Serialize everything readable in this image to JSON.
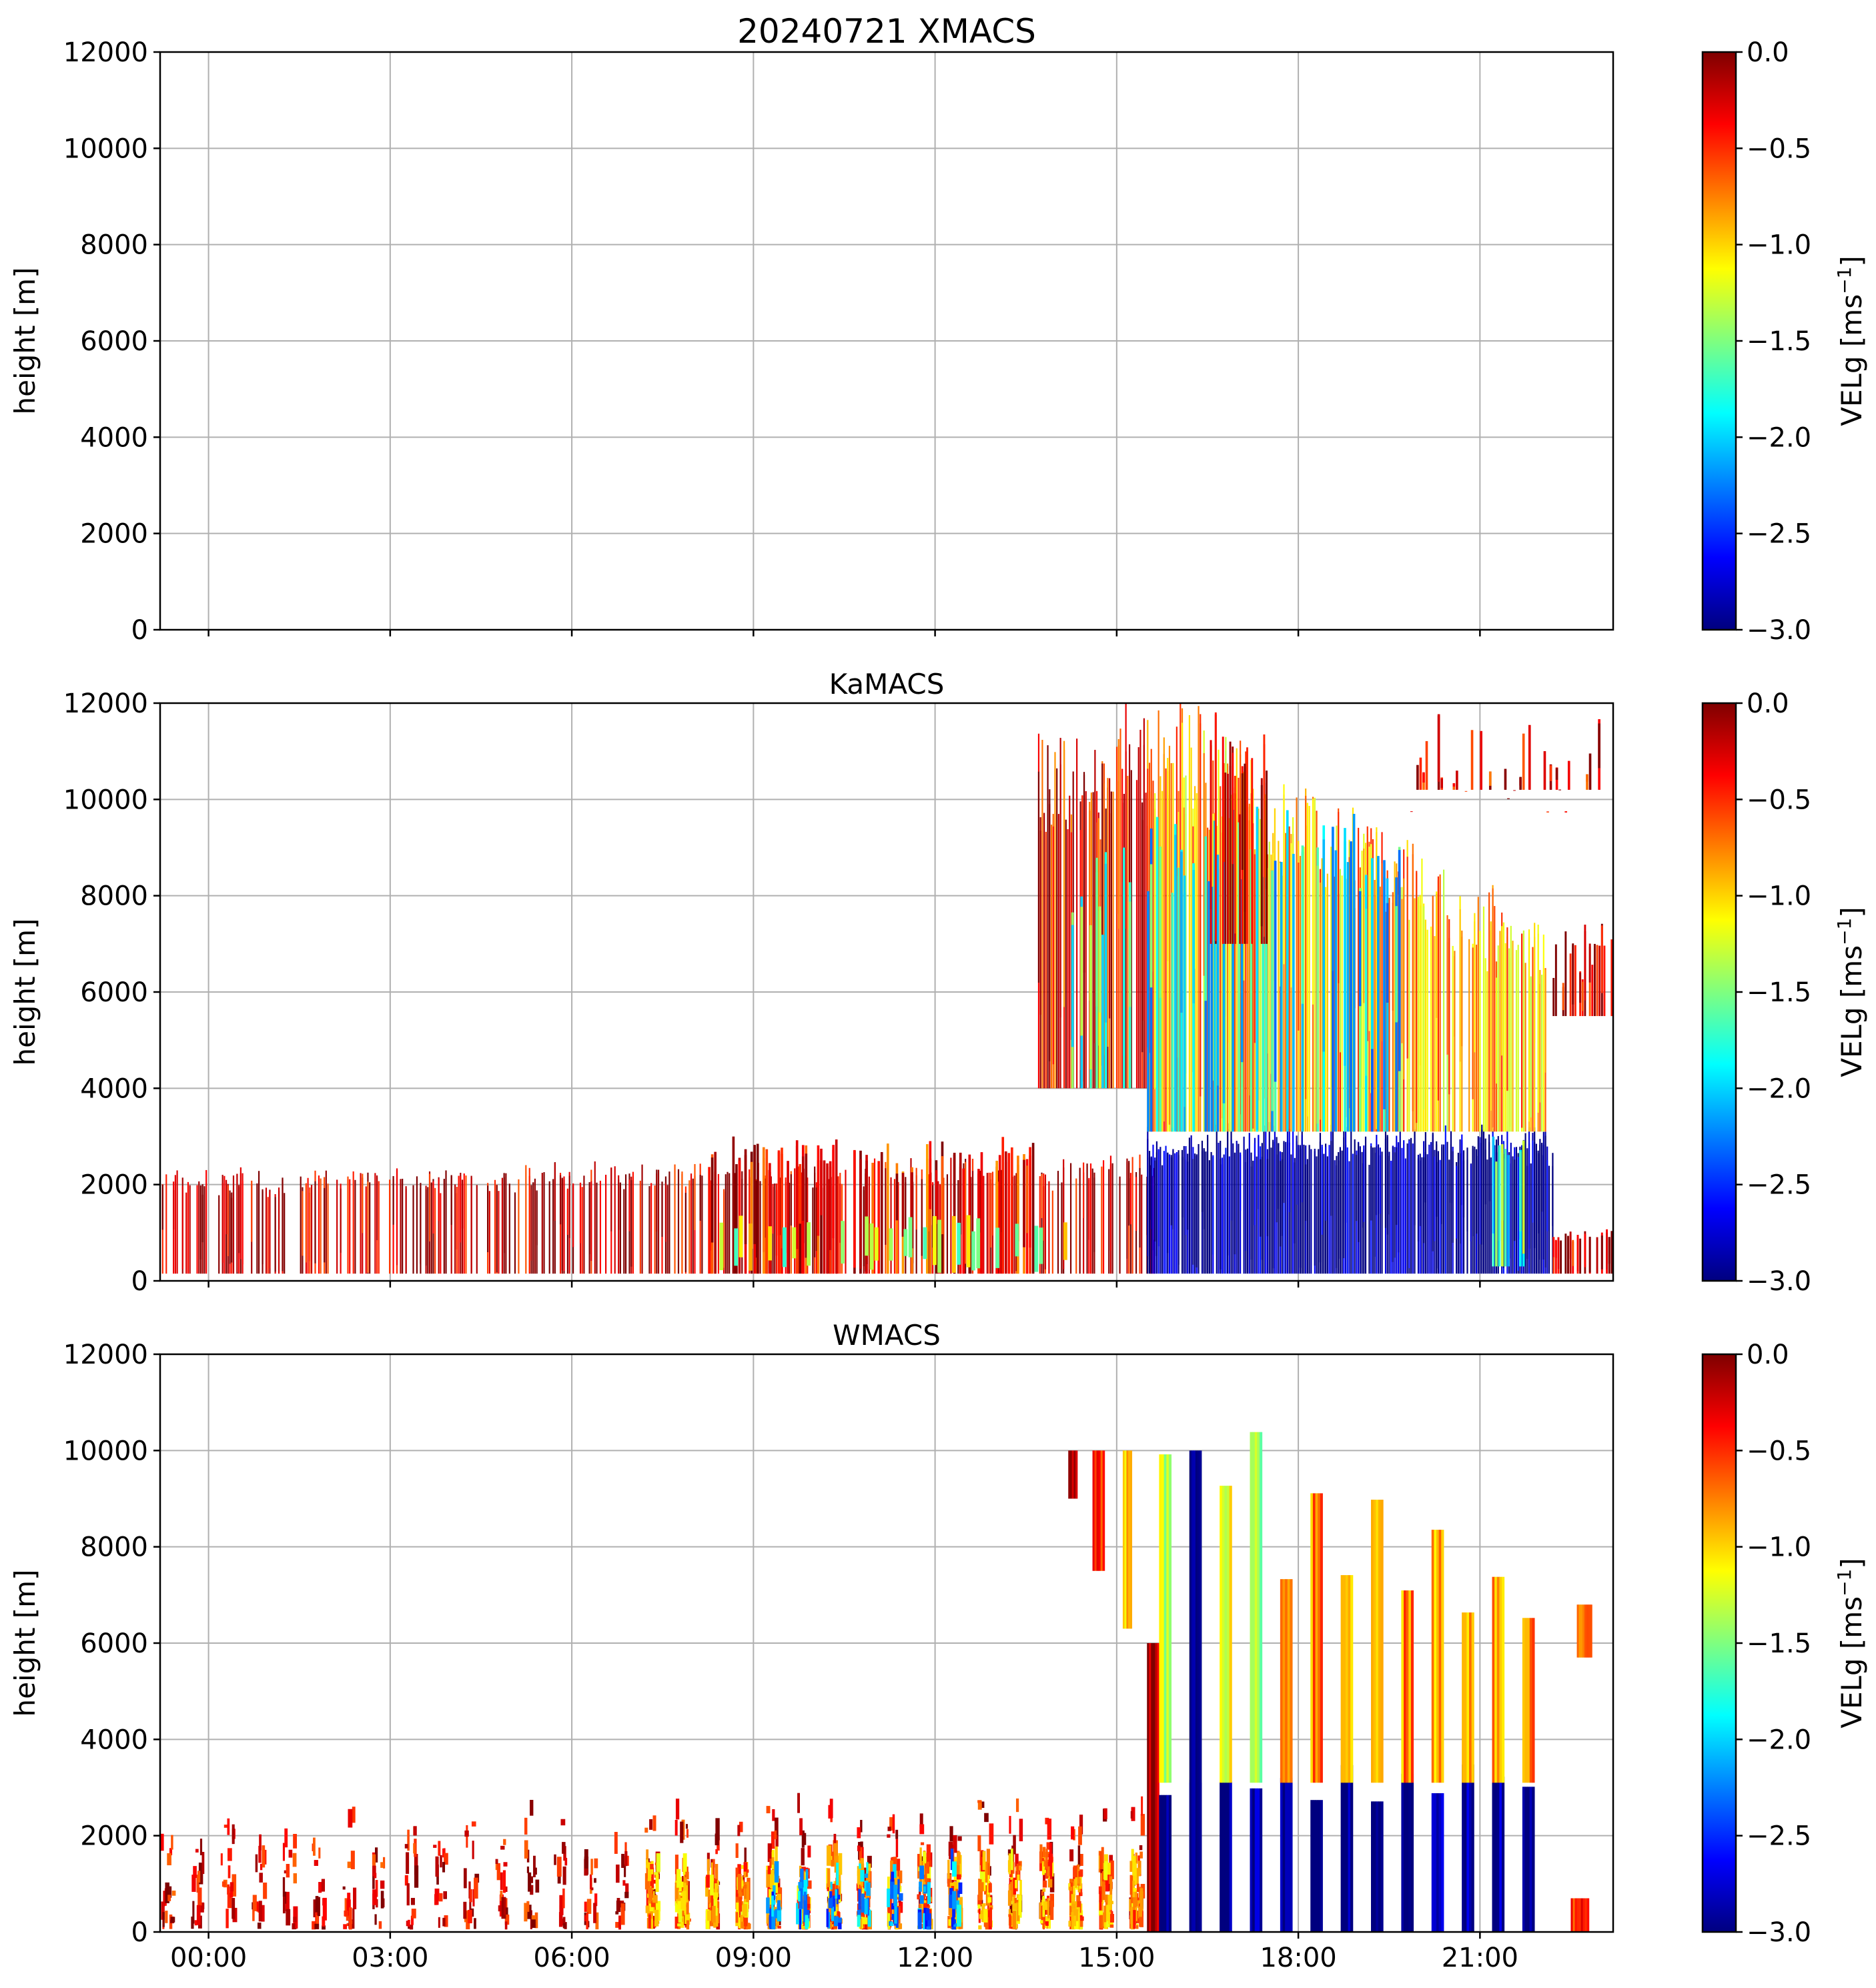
{
  "figure": {
    "colormap": "jet",
    "colormap_stops": [
      "#00007f",
      "#0000ff",
      "#007fff",
      "#00ffff",
      "#7fff7f",
      "#ffff00",
      "#ff7f00",
      "#ff0000",
      "#7f0000"
    ],
    "grid_color": "#b0b0b0",
    "time_tick_labels": [
      "00:00",
      "03:00",
      "06:00",
      "09:00",
      "12:00",
      "15:00",
      "18:00",
      "21:00"
    ],
    "time_tick_hours": [
      0.8,
      3.8,
      6.8,
      9.8,
      12.8,
      15.8,
      18.8,
      21.8
    ],
    "time_range_hours": [
      0.0,
      24.0
    ]
  },
  "chart_data": [
    {
      "type": "heatmap",
      "title": "20240721 XMACS",
      "xlabel": "",
      "ylabel": "height [m]",
      "ylim": [
        0,
        12000
      ],
      "yticks": [
        0,
        2000,
        4000,
        6000,
        8000,
        10000,
        12000
      ],
      "ytick_labels": [
        "0",
        "2000",
        "4000",
        "6000",
        "8000",
        "10000",
        "12000"
      ],
      "colorbar": {
        "label": "VELg [ms",
        "label_sup": "−1",
        "label_end": "]",
        "range": [
          -3.0,
          0.0
        ],
        "ticks": [
          0.0,
          -0.5,
          -1.0,
          -1.5,
          -2.0,
          -2.5,
          -3.0
        ],
        "tick_labels": [
          "0.0",
          "−0.5",
          "−1.0",
          "−1.5",
          "−2.0",
          "−2.5",
          "−3.0"
        ]
      },
      "features": []
    },
    {
      "type": "heatmap",
      "title": "KaMACS",
      "xlabel": "",
      "ylabel": "height [m]",
      "ylim": [
        0,
        12000
      ],
      "yticks": [
        0,
        2000,
        4000,
        6000,
        8000,
        10000,
        12000
      ],
      "ytick_labels": [
        "0",
        "2000",
        "4000",
        "6000",
        "8000",
        "10000",
        "12000"
      ],
      "colorbar": {
        "label": "VELg [ms",
        "label_sup": "−1",
        "label_end": "]",
        "range": [
          -3.0,
          0.0
        ],
        "ticks": [
          0.0,
          -0.5,
          -1.0,
          -1.5,
          -2.0,
          -2.5,
          -3.0
        ],
        "tick_labels": [
          "0.0",
          "−0.5",
          "−1.0",
          "−1.5",
          "−2.0",
          "−2.5",
          "−3.0"
        ]
      },
      "features": [
        {
          "kind": "layer",
          "t0": 0.0,
          "t1": 16.5,
          "h0": 150,
          "h1": 2200,
          "h1_end": 2500,
          "vel": -0.2,
          "density": 0.55,
          "stride": 0.03
        },
        {
          "kind": "layer",
          "t0": 9.0,
          "t1": 14.5,
          "h0": 150,
          "h1": 2800,
          "vel": -0.4,
          "density": 0.45,
          "stride": 0.05
        },
        {
          "kind": "patch",
          "t0": 9.0,
          "t1": 15.0,
          "h0": 150,
          "h1": 1300,
          "vel": -1.3,
          "density": 0.35,
          "stride": 0.08
        },
        {
          "kind": "layer",
          "t0": 14.5,
          "t1": 16.3,
          "h0": 4000,
          "h1": 10800,
          "h1_end": 11500,
          "vel": -0.4,
          "density": 0.85,
          "stride": 0.03
        },
        {
          "kind": "layer",
          "t0": 15.0,
          "t1": 16.3,
          "h0": 4000,
          "h1": 8500,
          "vel": -1.6,
          "density": 0.4,
          "stride": 0.05
        },
        {
          "kind": "layer",
          "t0": 16.3,
          "t1": 23.0,
          "h0": 150,
          "h1": 3100,
          "vel": -3.0,
          "density": 0.92,
          "stride": 0.03
        },
        {
          "kind": "layer",
          "t0": 16.3,
          "t1": 22.9,
          "h0": 3100,
          "h1": 11800,
          "h1_end": 7000,
          "vel": -0.9,
          "density": 0.85,
          "stride": 0.03
        },
        {
          "kind": "layer",
          "t0": 16.3,
          "t1": 20.5,
          "h0": 3100,
          "h1": 9500,
          "vel": -1.9,
          "density": 0.45,
          "stride": 0.05
        },
        {
          "kind": "layer",
          "t0": 17.3,
          "t1": 18.3,
          "h0": 7000,
          "h1": 11500,
          "vel": -0.1,
          "density": 0.6,
          "stride": 0.04
        },
        {
          "kind": "layer",
          "t0": 20.5,
          "t1": 24.0,
          "h0": 10200,
          "h1": 11000,
          "vel": -0.3,
          "density": 0.55,
          "stride": 0.05
        },
        {
          "kind": "layer",
          "t0": 23.0,
          "t1": 24.0,
          "h0": 5500,
          "h1": 7000,
          "vel": -0.2,
          "density": 0.7,
          "stride": 0.04
        },
        {
          "kind": "layer",
          "t0": 23.0,
          "t1": 24.0,
          "h0": 150,
          "h1": 1000,
          "vel": -0.2,
          "density": 0.6,
          "stride": 0.04
        },
        {
          "kind": "layer",
          "t0": 22.0,
          "t1": 22.6,
          "h0": 300,
          "h1": 3100,
          "vel": -1.7,
          "density": 0.5,
          "stride": 0.05
        }
      ]
    },
    {
      "type": "heatmap",
      "title": "WMACS",
      "xlabel": "",
      "ylabel": "height [m]",
      "ylim": [
        0,
        12000
      ],
      "yticks": [
        0,
        2000,
        4000,
        6000,
        8000,
        10000,
        12000
      ],
      "ytick_labels": [
        "0",
        "2000",
        "4000",
        "6000",
        "8000",
        "10000",
        "12000"
      ],
      "colorbar": {
        "label": "VELg [ms",
        "label_sup": "−1",
        "label_end": "]",
        "range": [
          -3.0,
          0.0
        ],
        "ticks": [
          0.0,
          -0.5,
          -1.0,
          -1.5,
          -2.0,
          -2.5,
          -3.0
        ],
        "tick_labels": [
          "0.0",
          "−0.5",
          "−1.0",
          "−1.5",
          "−2.0",
          "−2.5",
          "−3.0"
        ]
      },
      "features": [
        {
          "kind": "periodic",
          "t0": 0.0,
          "t1": 16.2,
          "period": 0.5,
          "width": 0.2,
          "h0": 50,
          "h1": 2000,
          "h1_end": 2600,
          "vel": -0.3,
          "density": 0.3
        },
        {
          "kind": "periodic",
          "t0": 8.0,
          "t1": 16.2,
          "period": 0.5,
          "width": 0.2,
          "h0": 50,
          "h1": 1400,
          "vel": -0.8,
          "density": 0.75
        },
        {
          "kind": "periodic",
          "t0": 10.0,
          "t1": 13.5,
          "period": 0.5,
          "width": 0.2,
          "h0": 50,
          "h1": 1200,
          "vel": -2.2,
          "density": 0.25
        },
        {
          "kind": "column",
          "t0": 15.0,
          "t1": 15.15,
          "h0": 9000,
          "h1": 10000,
          "vel": -0.2
        },
        {
          "kind": "column",
          "t0": 15.4,
          "t1": 15.6,
          "h0": 7500,
          "h1": 10000,
          "vel": -0.5
        },
        {
          "kind": "column",
          "t0": 15.9,
          "t1": 16.05,
          "h0": 6300,
          "h1": 10000,
          "vel": -1.0
        },
        {
          "kind": "column",
          "t0": 16.3,
          "t1": 16.5,
          "h0": 0,
          "h1": 6000,
          "vel": -0.1
        },
        {
          "kind": "periodic",
          "t0": 16.5,
          "t1": 23.0,
          "period": 0.5,
          "width": 0.2,
          "h0": 0,
          "h1": 3100,
          "vel": -3.0,
          "density": 1.0
        },
        {
          "kind": "periodic",
          "t0": 16.5,
          "t1": 18.5,
          "period": 0.5,
          "width": 0.2,
          "h0": 3100,
          "h1": 10000,
          "vel": -1.3,
          "density": 1.0
        },
        {
          "kind": "periodic",
          "t0": 18.5,
          "t1": 22.9,
          "period": 0.5,
          "width": 0.2,
          "h0": 3100,
          "h1": 8500,
          "h1_end": 7000,
          "vel": -0.8,
          "density": 1.0
        },
        {
          "kind": "column",
          "t0": 17.0,
          "t1": 17.2,
          "h0": 0,
          "h1": 10000,
          "vel": -2.9
        },
        {
          "kind": "column",
          "t0": 23.4,
          "t1": 23.65,
          "h0": 5700,
          "h1": 6800,
          "vel": -0.6
        },
        {
          "kind": "column",
          "t0": 23.3,
          "t1": 23.6,
          "h0": 0,
          "h1": 700,
          "vel": -0.5
        }
      ]
    }
  ]
}
